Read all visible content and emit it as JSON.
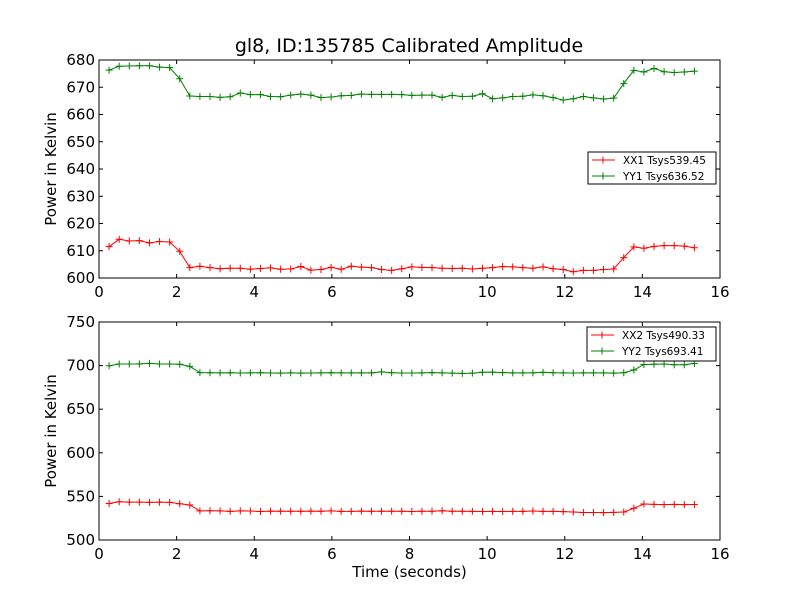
{
  "title": "gl8, ID:135785 Calibrated Amplitude",
  "chart_data": [
    {
      "type": "line",
      "title": "gl8, ID:135785 Calibrated Amplitude",
      "xlabel": "",
      "ylabel": "Power in Kelvin",
      "xlim": [
        0,
        16
      ],
      "ylim": [
        600,
        680
      ],
      "xticks": [
        0,
        2,
        4,
        6,
        8,
        10,
        12,
        14,
        16
      ],
      "yticks": [
        600,
        610,
        620,
        630,
        640,
        650,
        660,
        670,
        680
      ],
      "legend": "center-right",
      "x": [
        0.26,
        0.52,
        0.78,
        1.04,
        1.3,
        1.56,
        1.82,
        2.08,
        2.34,
        2.6,
        2.86,
        3.12,
        3.38,
        3.64,
        3.9,
        4.16,
        4.42,
        4.68,
        4.94,
        5.2,
        5.46,
        5.72,
        5.98,
        6.24,
        6.5,
        6.76,
        7.02,
        7.28,
        7.54,
        7.8,
        8.06,
        8.32,
        8.58,
        8.84,
        9.1,
        9.36,
        9.62,
        9.88,
        10.14,
        10.4,
        10.66,
        10.92,
        11.18,
        11.44,
        11.7,
        11.96,
        12.22,
        12.48,
        12.74,
        13.0,
        13.26,
        13.52,
        13.78,
        14.04,
        14.3,
        14.56,
        14.82,
        15.08,
        15.34
      ],
      "series": [
        {
          "name": "XX1 Tsys539.45",
          "color": "#ff0000",
          "values": [
            611.5,
            614.2,
            613.6,
            613.7,
            612.9,
            613.4,
            613.2,
            609.8,
            603.8,
            604.3,
            603.8,
            603.4,
            603.6,
            603.6,
            603.2,
            603.5,
            603.7,
            603.2,
            603.3,
            604.2,
            602.9,
            603.1,
            603.9,
            603.2,
            604.3,
            604.0,
            603.8,
            603.1,
            602.8,
            603.4,
            604.1,
            603.9,
            603.8,
            603.6,
            603.5,
            603.6,
            603.3,
            603.6,
            603.8,
            604.2,
            604.1,
            603.8,
            603.6,
            604.1,
            603.4,
            603.1,
            602.3,
            602.8,
            602.8,
            603.1,
            603.3,
            607.5,
            611.4,
            610.9,
            611.6,
            611.9,
            611.9,
            611.7,
            611.1
          ]
        },
        {
          "name": "YY1 Tsys636.52",
          "color": "#008000",
          "values": [
            676.3,
            677.7,
            677.8,
            677.9,
            677.9,
            677.4,
            677.2,
            673.1,
            666.8,
            666.6,
            666.6,
            666.3,
            666.5,
            667.9,
            667.3,
            667.3,
            666.6,
            666.5,
            667.1,
            667.5,
            667.1,
            666.2,
            666.4,
            666.9,
            667.0,
            667.5,
            667.4,
            667.4,
            667.4,
            667.3,
            667.0,
            667.1,
            667.1,
            666.3,
            667.0,
            666.6,
            666.7,
            667.6,
            665.8,
            666.1,
            666.6,
            666.7,
            667.2,
            666.9,
            666.2,
            665.3,
            665.8,
            666.6,
            666.1,
            665.7,
            666.0,
            671.4,
            676.2,
            675.6,
            676.9,
            675.7,
            675.4,
            675.6,
            675.9
          ]
        }
      ]
    },
    {
      "type": "line",
      "title": "",
      "xlabel": "Time (seconds)",
      "ylabel": "Power in Kelvin",
      "xlim": [
        0,
        16
      ],
      "ylim": [
        500,
        750
      ],
      "xticks": [
        0,
        2,
        4,
        6,
        8,
        10,
        12,
        14,
        16
      ],
      "yticks": [
        500,
        550,
        600,
        650,
        700,
        750
      ],
      "legend": "top-right",
      "x": [
        0.26,
        0.52,
        0.78,
        1.04,
        1.3,
        1.56,
        1.82,
        2.08,
        2.34,
        2.6,
        2.86,
        3.12,
        3.38,
        3.64,
        3.9,
        4.16,
        4.42,
        4.68,
        4.94,
        5.2,
        5.46,
        5.72,
        5.98,
        6.24,
        6.5,
        6.76,
        7.02,
        7.28,
        7.54,
        7.8,
        8.06,
        8.32,
        8.58,
        8.84,
        9.1,
        9.36,
        9.62,
        9.88,
        10.14,
        10.4,
        10.66,
        10.92,
        11.18,
        11.44,
        11.7,
        11.96,
        12.22,
        12.48,
        12.74,
        13.0,
        13.26,
        13.52,
        13.78,
        14.04,
        14.3,
        14.56,
        14.82,
        15.08,
        15.34
      ],
      "series": [
        {
          "name": "XX2 Tsys490.33",
          "color": "#ff0000",
          "values": [
            541.8,
            543.9,
            543.4,
            543.5,
            543.2,
            543.4,
            543.1,
            541.6,
            540.2,
            533.4,
            533.5,
            533.4,
            532.8,
            533.4,
            533.2,
            532.7,
            533.1,
            532.9,
            533.0,
            532.9,
            533.1,
            533.0,
            533.4,
            532.8,
            532.8,
            533.1,
            532.9,
            532.9,
            533.0,
            532.9,
            532.7,
            532.9,
            533.0,
            533.5,
            533.0,
            532.9,
            532.8,
            532.7,
            532.8,
            532.7,
            532.8,
            532.8,
            533.2,
            532.8,
            532.8,
            532.5,
            532.1,
            531.6,
            531.6,
            531.4,
            531.7,
            532.1,
            536.4,
            541.3,
            540.9,
            540.6,
            540.8,
            540.6,
            540.7
          ]
        },
        {
          "name": "YY2 Tsys693.41",
          "color": "#008000",
          "values": [
            699.8,
            701.8,
            701.9,
            702.0,
            702.5,
            701.8,
            701.9,
            701.6,
            699.1,
            691.9,
            691.8,
            691.6,
            691.8,
            691.5,
            691.7,
            691.8,
            691.5,
            691.4,
            691.6,
            691.4,
            691.5,
            691.6,
            691.8,
            691.6,
            691.6,
            691.7,
            691.6,
            692.8,
            691.8,
            691.5,
            691.5,
            691.7,
            692.0,
            691.7,
            691.4,
            691.1,
            691.3,
            692.4,
            692.5,
            692.0,
            691.6,
            691.7,
            691.6,
            692.3,
            691.8,
            691.6,
            691.5,
            691.6,
            691.6,
            691.6,
            691.4,
            691.8,
            694.9,
            701.3,
            701.6,
            701.9,
            701.0,
            701.0,
            702.5
          ]
        }
      ]
    }
  ]
}
